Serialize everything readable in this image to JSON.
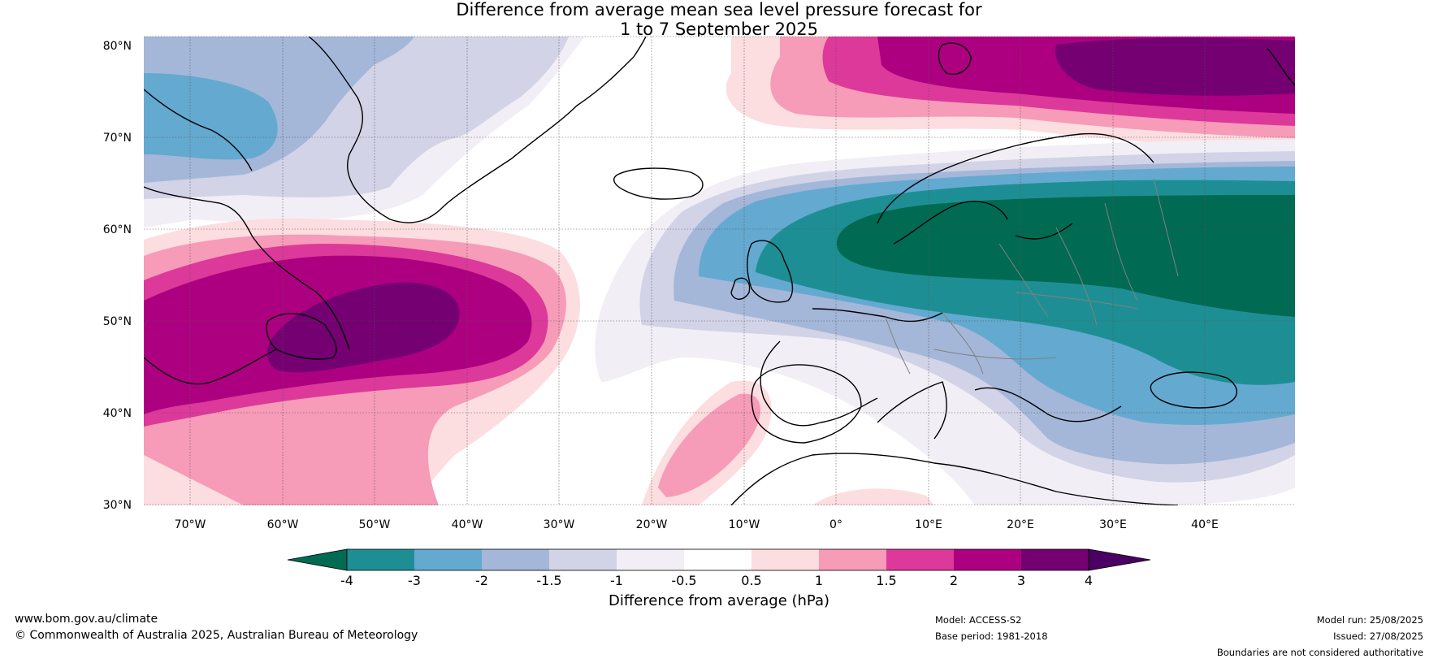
{
  "title": {
    "line1": "Difference from average mean sea level pressure forecast for",
    "line2": "1 to 7 September 2025"
  },
  "map": {
    "lat_labels": [
      "80°N",
      "70°N",
      "60°N",
      "50°N",
      "40°N",
      "30°N"
    ],
    "lon_labels": [
      "70°W",
      "60°W",
      "50°W",
      "40°W",
      "30°W",
      "20°W",
      "10°W",
      "0°",
      "10°E",
      "20°E",
      "30°E",
      "40°E"
    ]
  },
  "colorbar": {
    "tick_labels": [
      "-4",
      "-3",
      "-2",
      "-1.5",
      "-1",
      "-0.5",
      "0.5",
      "1",
      "1.5",
      "2",
      "3",
      "4"
    ],
    "colors": [
      "#006a53",
      "#1d8f94",
      "#64a9d0",
      "#a4b7d9",
      "#d2d3e7",
      "#f1eff5",
      "#ffffff",
      "#fcdde0",
      "#f69bb8",
      "#dc399a",
      "#ad0081",
      "#740072",
      "#4b0063"
    ],
    "label": "Difference from average (hPa)"
  },
  "footer": {
    "website": "www.bom.gov.au/climate",
    "copyright": "© Commonwealth of Australia 2025, Australian Bureau of Meteorology",
    "model": "Model: ACCESS-S2",
    "base_period": "Base period: 1981-2018",
    "model_run": "Model run: 25/08/2025",
    "issued": "Issued: 27/08/2025",
    "disclaimer": "Boundaries are not considered authoritative"
  }
}
